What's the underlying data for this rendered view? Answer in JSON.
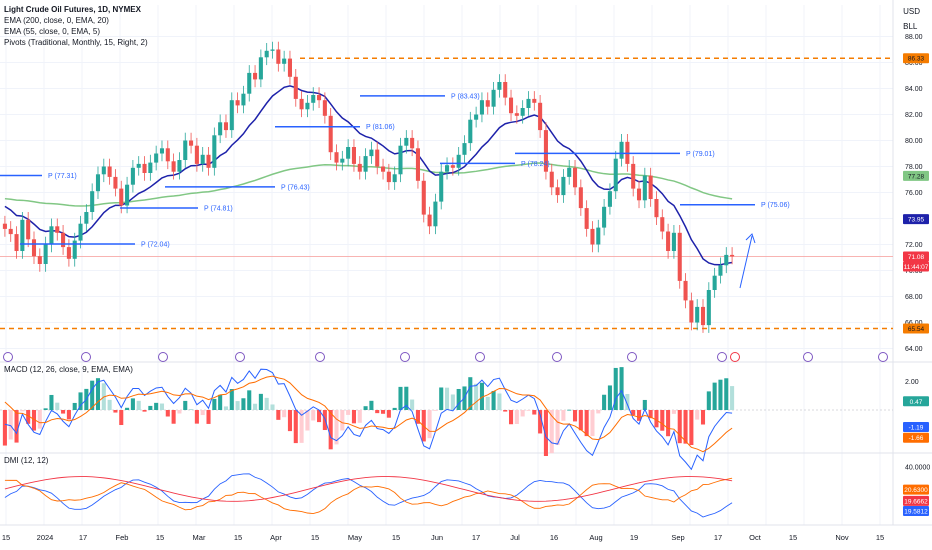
{
  "header": {
    "title": "Light Crude Oil Futures, 1D, NYMEX",
    "indicators": [
      "EMA (200, close, 0, EMA, 20)",
      "EMA (55, close, 0, EMA, 5)",
      "Pivots (Traditional, Monthly, 15, Right, 2)"
    ],
    "currency": "USD",
    "scale_mode": "BLL"
  },
  "price_axis": {
    "ticks": [
      "88.00",
      "86.00",
      "84.00",
      "82.00",
      "80.00",
      "78.00",
      "76.00",
      "74.00",
      "72.00",
      "70.00",
      "68.00",
      "66.00",
      "64.00"
    ]
  },
  "price_tags": {
    "top_level": "86.33",
    "ema200": "77.28",
    "ema55": "73.95",
    "last": "71.08",
    "countdown": "11:44:07",
    "bottom_level": "65.54"
  },
  "x_axis": {
    "ticks": [
      "15",
      "2024",
      "17",
      "Feb",
      "15",
      "Mar",
      "15",
      "Apr",
      "15",
      "May",
      "15",
      "Jun",
      "17",
      "Jul",
      "16",
      "Aug",
      "19",
      "Sep",
      "17",
      "Oct",
      "15",
      "Nov",
      "15"
    ]
  },
  "pivots": [
    "P (77.31)",
    "P (72.04)",
    "P (74.81)",
    "P (76.43)",
    "P (81.06)",
    "P (83.43)",
    "P (78.24)",
    "P (79.01)",
    "P (75.06)"
  ],
  "macd": {
    "label": "MACD (12, 26, close, 9, EMA, EMA)",
    "ticks": [
      "2.00",
      "0.00",
      "-2.00"
    ],
    "tag_hist": "0.47",
    "tag_macd": "-1.19",
    "tag_signal": "-1.66"
  },
  "dmi": {
    "label": "DMI (12, 12)",
    "ticks": [
      "40.0000"
    ],
    "tag_1": "20.6300",
    "tag_2": "19.6662",
    "tag_3": "19.5812"
  },
  "colors": {
    "up": "#26a69a",
    "down": "#ef5350",
    "ema55": "#1e22aa",
    "ema200": "#81c784",
    "pivot": "#2962ff",
    "level": "#f57c00",
    "macd": "#2962ff",
    "signal": "#ff6d00",
    "dmi_plus": "#2962ff",
    "dmi_minus": "#ff6d00",
    "adx": "#f23645"
  },
  "chart_data": {
    "type": "candlestick",
    "title": "Light Crude Oil Futures, 1D, NYMEX",
    "ylim": [
      63.5,
      88.5
    ],
    "close_series_approx": [
      73.2,
      72.8,
      71.5,
      73.9,
      72.4,
      71.1,
      70.5,
      72.0,
      73.4,
      72.9,
      71.8,
      70.9,
      72.3,
      73.6,
      74.5,
      76.1,
      77.4,
      78.0,
      77.2,
      76.3,
      75.0,
      76.6,
      77.9,
      78.2,
      77.5,
      78.3,
      79.0,
      79.4,
      78.4,
      77.6,
      78.5,
      80.0,
      79.6,
      78.2,
      78.9,
      77.9,
      80.4,
      81.4,
      80.8,
      83.1,
      82.7,
      83.6,
      85.2,
      84.7,
      86.4,
      86.9,
      87.0,
      85.9,
      86.3,
      84.9,
      83.2,
      82.4,
      82.9,
      83.5,
      83.1,
      81.9,
      79.1,
      78.3,
      78.6,
      79.5,
      78.2,
      77.6,
      78.8,
      79.3,
      78.0,
      77.6,
      76.8,
      77.4,
      79.6,
      80.2,
      79.4,
      76.9,
      74.3,
      73.4,
      75.3,
      77.6,
      78.1,
      77.9,
      78.9,
      79.8,
      81.6,
      82.0,
      83.1,
      82.6,
      83.9,
      84.5,
      83.3,
      82.1,
      81.9,
      82.5,
      83.2,
      82.9,
      80.8,
      77.6,
      76.4,
      75.8,
      77.2,
      77.9,
      76.4,
      74.8,
      73.2,
      72.0,
      73.3,
      74.9,
      76.1,
      78.6,
      79.9,
      78.2,
      76.3,
      75.4,
      77.3,
      75.5,
      74.1,
      73.0,
      71.5,
      72.9,
      69.2,
      67.7,
      66.0,
      67.2,
      65.8,
      68.5,
      69.6,
      70.4,
      71.2,
      71.08
    ],
    "levels": {
      "resistance": 86.33,
      "support": 65.54
    },
    "pivots": [
      77.31,
      72.04,
      74.81,
      76.43,
      81.06,
      83.43,
      78.24,
      79.01,
      75.06
    ],
    "ema55_last": 73.95,
    "ema200_last": 77.28,
    "last_price": 71.08
  }
}
